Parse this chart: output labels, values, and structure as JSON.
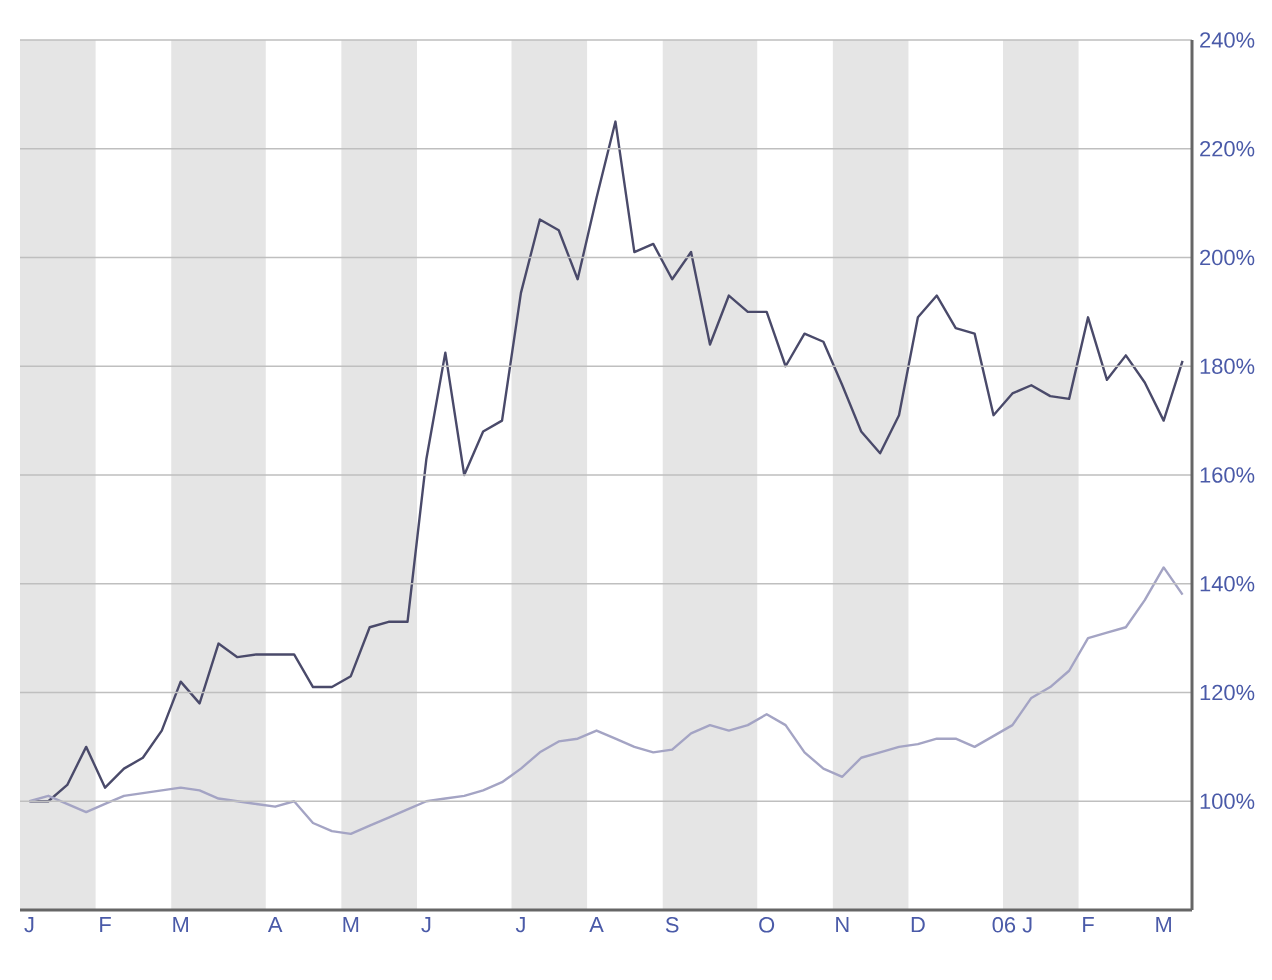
{
  "chart_data": {
    "type": "line",
    "categories": [
      "J",
      null,
      null,
      null,
      "F",
      null,
      null,
      null,
      "M",
      null,
      null,
      null,
      null,
      "A",
      null,
      null,
      null,
      "M",
      null,
      null,
      null,
      "J",
      null,
      null,
      null,
      null,
      "J",
      null,
      null,
      null,
      "A",
      null,
      null,
      null,
      "S",
      null,
      null,
      null,
      null,
      "O",
      null,
      null,
      null,
      "N",
      null,
      null,
      null,
      "D",
      null,
      null,
      null,
      null,
      "06 J",
      null,
      null,
      null,
      "F",
      null,
      null,
      null,
      "M",
      null
    ],
    "ylim": [
      80,
      240
    ],
    "yticks": [
      {
        "value": 80,
        "label": null
      },
      {
        "value": 100,
        "label": "100%"
      },
      {
        "value": 120,
        "label": "120%"
      },
      {
        "value": 140,
        "label": "140%"
      },
      {
        "value": 160,
        "label": "160%"
      },
      {
        "value": 180,
        "label": "180%"
      },
      {
        "value": 200,
        "label": "200%"
      },
      {
        "value": 220,
        "label": "220%"
      },
      {
        "value": 240,
        "label": "240%"
      }
    ],
    "grid": "y",
    "series": [
      {
        "color": "#4a4a6a",
        "values": [
          100,
          100,
          103,
          110,
          102.5,
          106,
          108,
          113,
          122,
          118,
          129,
          126.5,
          127,
          127,
          127,
          121,
          121,
          123,
          132,
          133,
          133,
          163,
          182.5,
          160,
          168,
          170,
          193.5,
          207,
          205,
          196,
          211,
          225,
          201,
          202.5,
          196,
          201,
          184,
          193,
          190,
          190,
          180,
          186,
          184.5,
          176.5,
          168,
          164,
          171,
          189,
          193,
          187,
          186,
          171,
          175,
          176.5,
          174.5,
          174,
          189,
          177.5,
          182,
          177,
          170,
          181
        ]
      },
      {
        "color": "#a4a4c4",
        "values": [
          100,
          101,
          99.5,
          98,
          99.5,
          101,
          101.5,
          102,
          102.5,
          102,
          100.5,
          100,
          99.5,
          99,
          100,
          96,
          94.5,
          94,
          95.5,
          97,
          98.5,
          100,
          100.5,
          101,
          102,
          103.5,
          106,
          109,
          111,
          111.5,
          113,
          111.5,
          110,
          109,
          109.5,
          112.5,
          114,
          113,
          114,
          116,
          114,
          109,
          106,
          104.5,
          108,
          109,
          110,
          110.5,
          111.5,
          111.5,
          110,
          112,
          114,
          119,
          121,
          124,
          130,
          131,
          132,
          137,
          143,
          138
        ]
      }
    ]
  }
}
